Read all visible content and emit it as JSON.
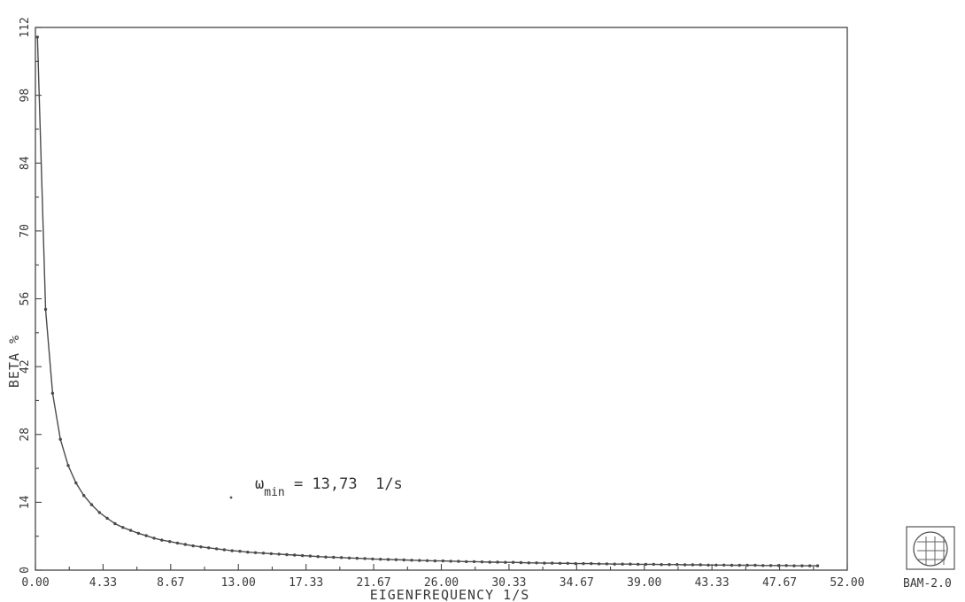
{
  "chart_data": {
    "type": "line",
    "title": "",
    "xlabel": "EIGENFREQUENCY 1/S",
    "ylabel": "BETA %",
    "xlim": [
      0,
      52
    ],
    "ylim": [
      0,
      112
    ],
    "x_ticks": [
      "0.00",
      "4.33",
      "8.67",
      "13.00",
      "17.33",
      "21.67",
      "26.00",
      "30.33",
      "34.67",
      "39.00",
      "43.33",
      "47.67",
      "52.00"
    ],
    "y_ticks": [
      "0",
      "14",
      "28",
      "42",
      "56",
      "70",
      "84",
      "98",
      "112"
    ],
    "grid": false,
    "annotation": {
      "symbol": "ω",
      "subscript": "min",
      "text": " = 13,73  1/s"
    },
    "stamp_text": "BAM-2.0",
    "series": [
      {
        "x": [
          0.13,
          0.65,
          1.1,
          1.6,
          2.1,
          2.6,
          3.1,
          3.6,
          4.1,
          4.6,
          5.1,
          5.6,
          6.1,
          6.6,
          7.1,
          7.6,
          8.1,
          8.6,
          9.1,
          9.6,
          10.1,
          10.6,
          11.1,
          11.6,
          12.1,
          12.6,
          13.1,
          13.6,
          14.1,
          14.6,
          15.1,
          15.6,
          16.1,
          16.6,
          17.1,
          17.6,
          18.1,
          18.6,
          19.1,
          19.6,
          20.1,
          20.6,
          21.1,
          21.6,
          22.1,
          22.6,
          23.1,
          23.6,
          24.1,
          24.6,
          25.1,
          25.6,
          26.1,
          26.6,
          27.1,
          27.6,
          28.1,
          28.6,
          29.1,
          29.6,
          30.1,
          30.6,
          31.1,
          31.6,
          32.1,
          32.6,
          33.1,
          33.6,
          34.1,
          34.6,
          35.1,
          35.6,
          36.1,
          36.6,
          37.1,
          37.6,
          38.1,
          38.6,
          39.1,
          39.6,
          40.1,
          40.6,
          41.1,
          41.6,
          42.1,
          42.6,
          43.1,
          43.6,
          44.1,
          44.6,
          45.1,
          45.6,
          46.1,
          46.6,
          47.1,
          47.6,
          48.1,
          48.6,
          49.1,
          49.6,
          50.1
        ],
        "y": [
          110.0,
          53.8,
          36.5,
          27.0,
          21.6,
          18.0,
          15.4,
          13.5,
          11.9,
          10.7,
          9.6,
          8.8,
          8.2,
          7.6,
          7.1,
          6.6,
          6.2,
          5.9,
          5.6,
          5.3,
          5.0,
          4.8,
          4.6,
          4.4,
          4.2,
          4.0,
          3.9,
          3.7,
          3.6,
          3.5,
          3.4,
          3.3,
          3.2,
          3.1,
          3.0,
          2.9,
          2.8,
          2.7,
          2.65,
          2.6,
          2.5,
          2.45,
          2.4,
          2.3,
          2.25,
          2.2,
          2.15,
          2.1,
          2.05,
          2.0,
          1.95,
          1.9,
          1.9,
          1.85,
          1.8,
          1.75,
          1.75,
          1.7,
          1.65,
          1.65,
          1.6,
          1.6,
          1.55,
          1.5,
          1.5,
          1.45,
          1.45,
          1.4,
          1.4,
          1.35,
          1.35,
          1.35,
          1.3,
          1.3,
          1.25,
          1.25,
          1.25,
          1.2,
          1.2,
          1.2,
          1.15,
          1.15,
          1.15,
          1.1,
          1.1,
          1.1,
          1.05,
          1.05,
          1.05,
          1.0,
          1.0,
          1.0,
          1.0,
          0.95,
          0.95,
          0.95,
          0.95,
          0.9,
          0.9,
          0.9,
          0.9
        ]
      }
    ]
  }
}
